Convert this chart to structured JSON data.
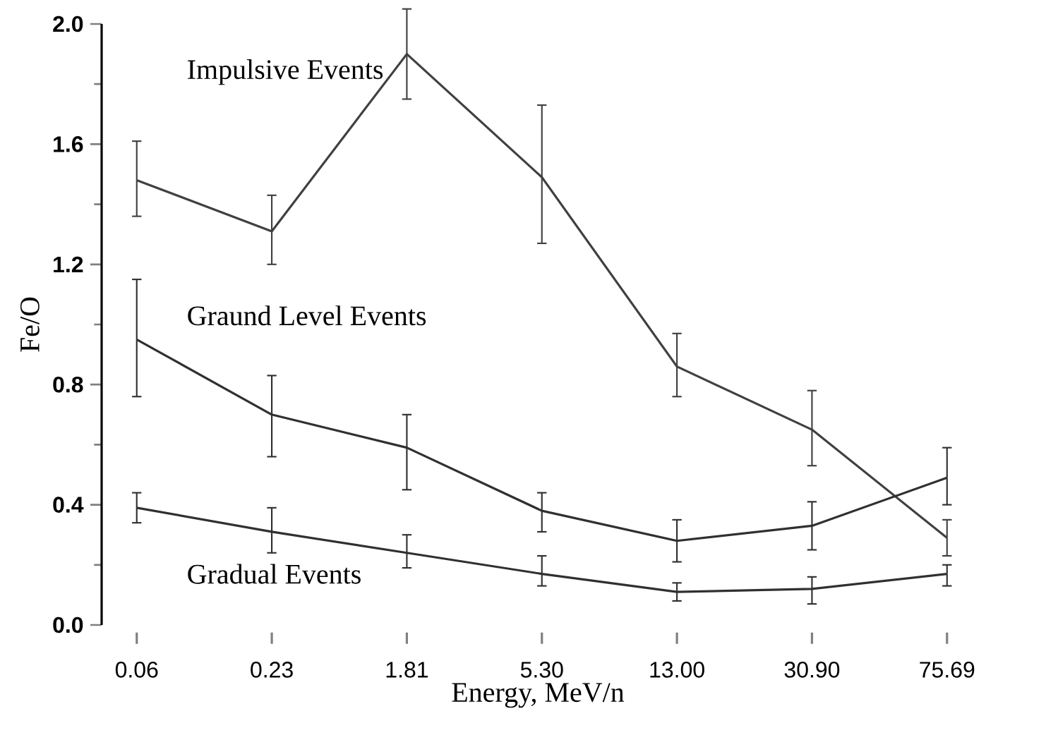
{
  "chart_data": {
    "type": "line",
    "xlabel": "Energy, MeV/n",
    "ylabel": "Fe/O",
    "categories": [
      "0.06",
      "0.23",
      "1.81",
      "5.30",
      "13.00",
      "30.90",
      "75.69"
    ],
    "ylim": [
      0,
      2.0
    ],
    "yticks": [
      {
        "value": 0,
        "label": "0.0"
      },
      {
        "value": 0.4,
        "label": "0.4"
      },
      {
        "value": 0.8,
        "label": "0.8"
      },
      {
        "value": 1.2,
        "label": "1.2"
      },
      {
        "value": 1.6,
        "label": "1.6"
      },
      {
        "value": 2.0,
        "label": "2.0"
      }
    ],
    "grid": false,
    "legend": false,
    "marker": "none",
    "line_style": "solid",
    "series": [
      {
        "name": "Impulsive Events",
        "color": "#404040",
        "values": [
          1.48,
          1.31,
          1.9,
          1.49,
          0.86,
          0.65,
          0.29
        ],
        "errors": [
          [
            1.36,
            1.61
          ],
          [
            1.2,
            1.43
          ],
          [
            1.75,
            2.05
          ],
          [
            1.27,
            1.73
          ],
          [
            0.76,
            0.97
          ],
          [
            0.53,
            0.78
          ],
          [
            0.23,
            0.35
          ]
        ]
      },
      {
        "name": "Graund Level Events",
        "color": "#303030",
        "values": [
          0.95,
          0.7,
          0.59,
          0.38,
          0.28,
          0.33,
          0.49
        ],
        "errors": [
          [
            0.76,
            1.15
          ],
          [
            0.56,
            0.83
          ],
          [
            0.45,
            0.7
          ],
          [
            0.31,
            0.44
          ],
          [
            0.21,
            0.35
          ],
          [
            0.25,
            0.41
          ],
          [
            0.4,
            0.59
          ]
        ]
      },
      {
        "name": "Gradual Events",
        "color": "#303030",
        "values": [
          0.39,
          0.31,
          0.24,
          0.17,
          0.11,
          0.12,
          0.17
        ],
        "errors": [
          [
            0.34,
            0.44
          ],
          [
            0.24,
            0.39
          ],
          [
            0.19,
            0.3
          ],
          [
            0.13,
            0.23
          ],
          [
            0.08,
            0.14
          ],
          [
            0.07,
            0.16
          ],
          [
            0.13,
            0.2
          ]
        ]
      }
    ]
  }
}
